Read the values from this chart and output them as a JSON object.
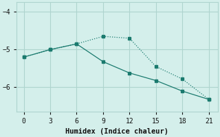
{
  "line1_x": [
    0,
    3,
    6,
    9,
    12,
    15,
    18,
    21
  ],
  "line1_y": [
    -5.2,
    -5.0,
    -4.85,
    -4.65,
    -4.7,
    -5.45,
    -5.78,
    -6.32
  ],
  "line2_x": [
    0,
    3,
    6,
    9,
    12,
    15,
    18,
    21
  ],
  "line2_y": [
    -5.2,
    -5.0,
    -4.85,
    -5.32,
    -5.62,
    -5.82,
    -6.1,
    -6.32
  ],
  "color": "#1a7a6e",
  "bg_color": "#d4efeb",
  "grid_color": "#aed4ce",
  "xlabel": "Humidex (Indice chaleur)",
  "xlabel_fontsize": 7.5,
  "xticks": [
    0,
    3,
    6,
    9,
    12,
    15,
    18,
    21
  ],
  "yticks": [
    -4,
    -5,
    -6
  ],
  "ylim": [
    -6.65,
    -3.75
  ],
  "xlim": [
    -0.8,
    22.0
  ]
}
